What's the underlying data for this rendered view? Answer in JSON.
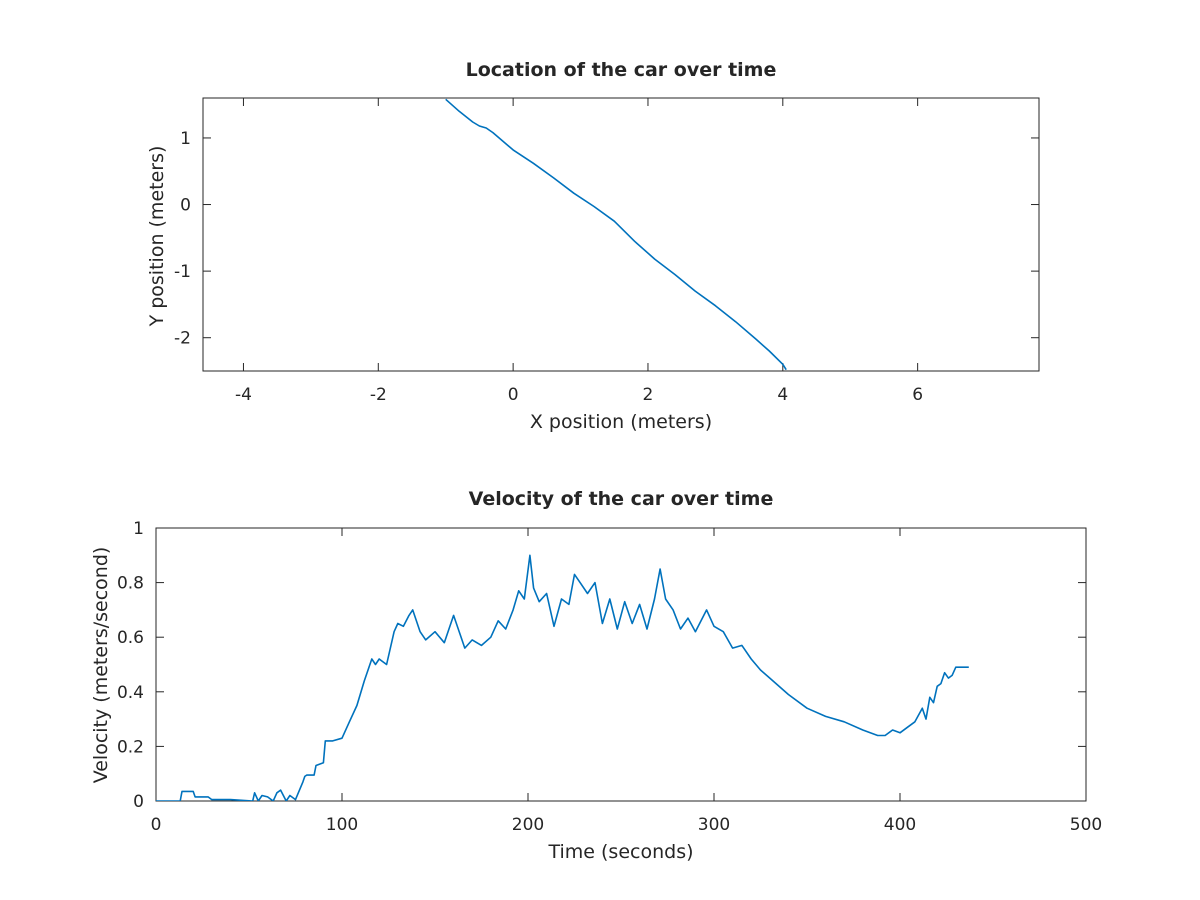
{
  "chart_data": [
    {
      "type": "line",
      "title": "Location of the car over time",
      "xlabel": "X position (meters)",
      "ylabel": "Y position (meters)",
      "xlim": [
        -4.6,
        7.8
      ],
      "ylim": [
        -2.5,
        1.6
      ],
      "xticks": [
        -4,
        -2,
        0,
        2,
        4,
        6
      ],
      "yticks": [
        -2,
        -1,
        0,
        1
      ],
      "grid": false,
      "line_color": "#0072BD",
      "series": [
        {
          "x": [
            -1.0,
            -0.8,
            -0.6,
            -0.5,
            -0.4,
            -0.3,
            0.0,
            0.3,
            0.6,
            0.9,
            1.2,
            1.5,
            1.8,
            2.1,
            2.4,
            2.7,
            3.0,
            3.3,
            3.6,
            3.8,
            4.0,
            4.05
          ],
          "y": [
            1.58,
            1.4,
            1.24,
            1.18,
            1.15,
            1.08,
            0.82,
            0.62,
            0.4,
            0.17,
            -0.03,
            -0.25,
            -0.55,
            -0.82,
            -1.05,
            -1.3,
            -1.52,
            -1.76,
            -2.02,
            -2.2,
            -2.4,
            -2.48
          ]
        }
      ]
    },
    {
      "type": "line",
      "title": "Velocity of the car over time",
      "xlabel": "Time (seconds)",
      "ylabel": "Velocity (meters/second)",
      "xlim": [
        0,
        500
      ],
      "ylim": [
        0,
        1
      ],
      "xticks": [
        0,
        100,
        200,
        300,
        400,
        500
      ],
      "yticks": [
        0,
        0.2,
        0.4,
        0.6,
        0.8,
        1
      ],
      "grid": false,
      "line_color": "#0072BD",
      "series": [
        {
          "x": [
            0,
            13,
            14,
            20,
            21,
            28,
            30,
            40,
            52,
            53,
            55,
            57,
            60,
            63,
            65,
            67,
            70,
            72,
            75,
            79,
            80,
            81,
            85,
            86,
            90,
            91,
            95,
            100,
            104,
            108,
            112,
            116,
            118,
            120,
            124,
            128,
            130,
            133,
            136,
            138,
            142,
            145,
            150,
            155,
            160,
            163,
            166,
            170,
            175,
            180,
            184,
            188,
            192,
            195,
            198,
            201,
            203,
            206,
            210,
            214,
            218,
            222,
            225,
            228,
            232,
            236,
            240,
            244,
            248,
            252,
            256,
            260,
            264,
            268,
            271,
            274,
            278,
            282,
            286,
            290,
            296,
            300,
            305,
            310,
            315,
            320,
            325,
            330,
            340,
            350,
            360,
            370,
            380,
            388,
            392,
            396,
            400,
            404,
            408,
            412,
            414,
            416,
            418,
            420,
            422,
            424,
            426,
            428,
            430,
            432,
            437
          ],
          "y": [
            0,
            0,
            0.035,
            0.035,
            0.015,
            0.015,
            0.005,
            0.005,
            0.0,
            0.03,
            0.0,
            0.02,
            0.015,
            0.0,
            0.03,
            0.04,
            0.0,
            0.02,
            0.005,
            0.07,
            0.09,
            0.095,
            0.095,
            0.13,
            0.14,
            0.22,
            0.22,
            0.23,
            0.29,
            0.35,
            0.44,
            0.52,
            0.5,
            0.52,
            0.5,
            0.62,
            0.65,
            0.64,
            0.68,
            0.7,
            0.62,
            0.59,
            0.62,
            0.58,
            0.68,
            0.62,
            0.56,
            0.59,
            0.57,
            0.6,
            0.66,
            0.63,
            0.7,
            0.77,
            0.74,
            0.9,
            0.78,
            0.73,
            0.76,
            0.64,
            0.74,
            0.72,
            0.83,
            0.8,
            0.76,
            0.8,
            0.65,
            0.74,
            0.63,
            0.73,
            0.65,
            0.72,
            0.63,
            0.74,
            0.85,
            0.74,
            0.7,
            0.63,
            0.67,
            0.62,
            0.7,
            0.64,
            0.62,
            0.56,
            0.57,
            0.52,
            0.48,
            0.45,
            0.39,
            0.34,
            0.31,
            0.29,
            0.26,
            0.24,
            0.24,
            0.26,
            0.25,
            0.27,
            0.29,
            0.34,
            0.3,
            0.38,
            0.36,
            0.42,
            0.43,
            0.47,
            0.45,
            0.46,
            0.49,
            0.49,
            0.49
          ]
        }
      ]
    }
  ]
}
